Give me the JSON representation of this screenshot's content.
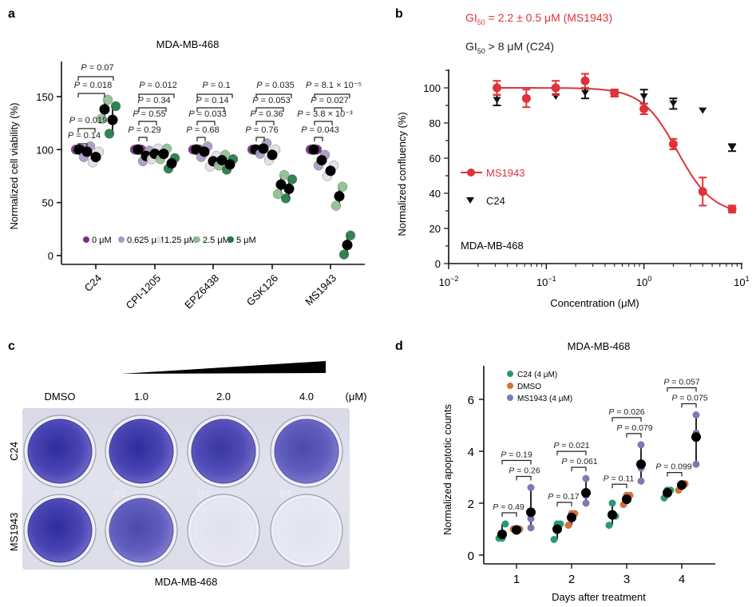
{
  "figure": {
    "panel_labels": [
      "a",
      "b",
      "c",
      "d"
    ]
  },
  "chart_data": [
    {
      "panel": "a",
      "type": "scatter",
      "title": "MDA-MB-468",
      "xlabel": "",
      "ylabel": "Normalized cell viability (%)",
      "ylim": [
        0,
        175
      ],
      "yticks": [
        "0",
        "50",
        "100",
        "150"
      ],
      "categories": [
        "C24",
        "CPI-1205",
        "EPZ6438",
        "GSK126",
        "MS1943"
      ],
      "legend": {
        "placement": "bottom-left",
        "entries": [
          {
            "label": "0 μM",
            "color": "#7b2a86"
          },
          {
            "label": "0.625 μM",
            "color": "#a899c4"
          },
          {
            "label": "1.25 μM",
            "color": "#e1dfe6"
          },
          {
            "label": "2.5 μM",
            "color": "#8dc08f"
          },
          {
            "label": "5 μM",
            "color": "#1f7a43"
          }
        ]
      },
      "series": [
        {
          "name": "0 μM",
          "means": [
            100,
            100,
            100,
            100,
            100
          ]
        },
        {
          "name": "0.625 μM",
          "means": [
            98,
            94,
            98,
            101,
            90
          ]
        },
        {
          "name": "1.25 μM",
          "means": [
            93,
            96,
            89,
            95,
            80
          ]
        },
        {
          "name": "2.5 μM",
          "means": [
            138,
            96,
            90,
            67,
            56
          ]
        },
        {
          "name": "5 μM",
          "means": [
            128,
            87,
            86,
            63,
            10
          ]
        }
      ],
      "annotations": [
        {
          "category": "C24",
          "labels": [
            "P = 0.07",
            "P = 0.018",
            "P = 0.019",
            "P = 0.14"
          ]
        },
        {
          "category": "CPI-1205",
          "labels": [
            "P = 0.012",
            "P = 0.34",
            "P = 0.55",
            "P = 0.29"
          ]
        },
        {
          "category": "EPZ6438",
          "labels": [
            "P = 0.1",
            "P = 0.14",
            "P = 0.033",
            "P = 0.68"
          ]
        },
        {
          "category": "GSK126",
          "labels": [
            "P = 0.035",
            "P = 0.053",
            "P = 0.36",
            "P = 0.76"
          ]
        },
        {
          "category": "MS1943",
          "labels": [
            "P = 8.1 × 10⁻⁵",
            "P = 0.027",
            "P = 3.8 × 10⁻³",
            "P = 0.043"
          ]
        }
      ]
    },
    {
      "panel": "b",
      "type": "line",
      "title": "",
      "annotations_top": [
        {
          "text": "GI50 = 2.2 ± 0.5 μM (MS1943)",
          "main": "GI",
          "sub": "50",
          "rest": " = 2.2 ± 0.5 μM (MS1943)",
          "color": "#e0323a"
        },
        {
          "text": "GI50 > 8 μM (C24)",
          "main": "GI",
          "sub": "50",
          "rest": " > 8 μM (C24)",
          "color": "#222222"
        }
      ],
      "inset_label": "MDA-MB-468",
      "xlabel": "Concentration (μM)",
      "ylabel": "Normalized confluency (%)",
      "xscale": "log",
      "xlim": [
        0.01,
        10
      ],
      "ylim": [
        0,
        110
      ],
      "xticks": [
        {
          "base": "10",
          "exp": "−2"
        },
        {
          "base": "10",
          "exp": "−1"
        },
        {
          "base": "10",
          "exp": "0"
        },
        {
          "base": "10",
          "exp": "1"
        }
      ],
      "yticks": [
        "0",
        "20",
        "40",
        "60",
        "80",
        "100"
      ],
      "legend": {
        "placement": "center-left",
        "entries": [
          {
            "label": "MS1943",
            "color": "#e0323a",
            "marker": "circle-line"
          },
          {
            "label": "C24",
            "color": "#111111",
            "marker": "triangle-down"
          }
        ]
      },
      "series": [
        {
          "name": "MS1943",
          "color": "#e0323a",
          "x": [
            0.03125,
            0.0625,
            0.125,
            0.25,
            0.5,
            1,
            2,
            4,
            8
          ],
          "y": [
            100,
            94,
            100,
            104,
            97,
            88,
            68,
            41,
            31
          ],
          "err": [
            4,
            5,
            4,
            4,
            2,
            3,
            3,
            8,
            2
          ]
        },
        {
          "name": "C24",
          "color": "#111111",
          "x": [
            0.03125,
            0.125,
            0.25,
            0.5,
            1,
            2,
            4,
            8
          ],
          "y": [
            93,
            95,
            97,
            97,
            95,
            91,
            87,
            66
          ],
          "err": [
            3,
            0,
            3,
            2,
            4,
            3,
            0,
            2
          ]
        }
      ],
      "fit": {
        "series": "MS1943",
        "top": 100,
        "bottom": 28,
        "gi50": 2.2,
        "hill": 2.4
      }
    },
    {
      "panel": "c",
      "type": "table",
      "title": "MDA-MB-468",
      "column_labels": [
        "DMSO",
        "1.0",
        "2.0",
        "4.0"
      ],
      "unit_label": "(μM)",
      "row_labels": [
        "C24",
        "MS1943"
      ],
      "well_markings": [
        "B2",
        "B3",
        "B4"
      ],
      "stain_intensity": [
        [
          1.0,
          1.0,
          0.95,
          0.85
        ],
        [
          1.0,
          0.85,
          0.3,
          0.05
        ]
      ]
    },
    {
      "panel": "d",
      "type": "scatter",
      "title": "MDA-MB-468",
      "xlabel": "Days after treatment",
      "ylabel": "Normalized apoptotic counts",
      "ylim": [
        0,
        7
      ],
      "yticks": [
        "0",
        "2",
        "4",
        "6"
      ],
      "categories": [
        "1",
        "2",
        "3",
        "4"
      ],
      "legend": {
        "placement": "top-left",
        "entries": [
          {
            "label": "C24 (4 μM)",
            "color": "#2a9a72"
          },
          {
            "label": "DMSO",
            "color": "#d0733a"
          },
          {
            "label": "MS1943 (4 μM)",
            "color": "#7f78b3"
          }
        ]
      },
      "series": [
        {
          "name": "C24 (4 μM)",
          "means": [
            0.8,
            1.0,
            1.55,
            2.4
          ],
          "points": [
            [
              0.65,
              0.65,
              1.2
            ],
            [
              0.6,
              1.2,
              1.2
            ],
            [
              1.15,
              2.0,
              1.5
            ],
            [
              2.2,
              2.5,
              2.5
            ]
          ]
        },
        {
          "name": "DMSO",
          "means": [
            0.97,
            1.45,
            2.15,
            2.7
          ],
          "points": [
            [
              1.0,
              1.0,
              1.0
            ],
            [
              1.15,
              1.6,
              1.6
            ],
            [
              1.95,
              2.3,
              2.3
            ],
            [
              2.5,
              2.75,
              2.75
            ]
          ]
        },
        {
          "name": "MS1943 (4 μM)",
          "means": [
            1.65,
            2.4,
            3.5,
            4.55
          ],
          "points": [
            [
              1.05,
              1.4,
              2.6
            ],
            [
              2.0,
              2.3,
              2.95
            ],
            [
              2.85,
              3.35,
              4.25
            ],
            [
              3.5,
              4.7,
              5.4
            ]
          ]
        }
      ],
      "annotations": [
        {
          "day": "1",
          "labels": [
            "P = 0.19",
            "P = 0.26",
            "P = 0.49"
          ]
        },
        {
          "day": "2",
          "labels": [
            "P = 0.021",
            "P = 0.061",
            "P = 0.17"
          ]
        },
        {
          "day": "3",
          "labels": [
            "P = 0.026",
            "P = 0.079",
            "P = 0.11"
          ]
        },
        {
          "day": "4",
          "labels": [
            "P = 0.057",
            "P = 0.075",
            "P = 0.099"
          ]
        }
      ]
    }
  ]
}
